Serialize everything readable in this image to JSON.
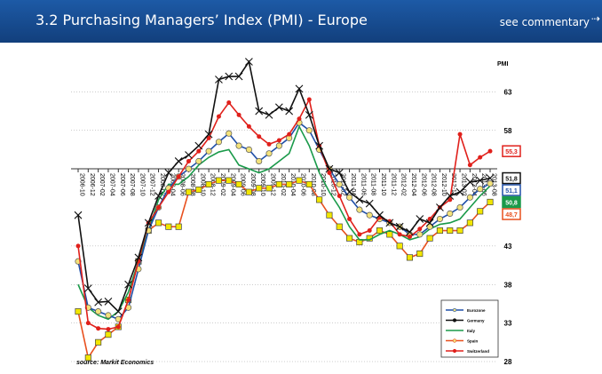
{
  "header": {
    "title": "3.2 Purchasing Managers’ Index (PMI) - Europe",
    "link": "see commentary"
  },
  "chart_data": {
    "type": "line",
    "y_label": "PMI",
    "source": "source:  Markit Economics",
    "categories": [
      "2006-10",
      "2006-12",
      "2007-02",
      "2007-04",
      "2007-06",
      "2007-08",
      "2007-10",
      "2007-12",
      "2008-02",
      "2008-04",
      "2008-06",
      "2008-08",
      "2008-10",
      "2008-12",
      "2009-02",
      "2009-04",
      "2009-06",
      "2009-08",
      "2009-10",
      "2009-12",
      "2010-02",
      "2010-04",
      "2010-06",
      "2010-08",
      "2010-10",
      "2010-12",
      "2011-02",
      "2011-04",
      "2011-06",
      "2011-08",
      "2011-10",
      "2011-12",
      "2012-02",
      "2012-04",
      "2012-06",
      "2012-08",
      "2012-10",
      "2012-12",
      "2013-02",
      "2013-04",
      "2013-06",
      "2013-08"
    ],
    "ylim": [
      28,
      68
    ],
    "yticks": [
      28,
      33,
      38,
      43,
      58,
      63
    ],
    "grid": true,
    "series": [
      {
        "name": "Eurozone",
        "color": "#1f4fa8",
        "marker": "circle",
        "end_label": "51,1",
        "values": [
          41,
          35,
          34.5,
          34,
          33.5,
          35,
          40,
          45,
          48,
          50.5,
          52,
          53,
          54,
          55.3,
          56.5,
          57.6,
          56,
          55.5,
          54,
          55,
          56,
          57,
          59,
          58,
          55.5,
          53,
          51,
          49.3,
          47.7,
          47,
          46.5,
          46,
          45.5,
          44.5,
          44.5,
          45.5,
          46.5,
          47.2,
          48,
          49.3,
          50.4,
          51.1
        ]
      },
      {
        "name": "Germany",
        "color": "#111111",
        "marker": "x",
        "end_label": "51,8",
        "values": [
          47,
          37.5,
          35.7,
          35.8,
          34.5,
          38,
          41.5,
          46,
          49.5,
          52.5,
          54,
          54.8,
          56,
          57.5,
          64.6,
          65,
          65,
          66.9,
          60.5,
          60,
          61,
          60.5,
          63.4,
          60,
          56,
          53,
          52.5,
          50,
          49,
          48.5,
          47,
          46,
          45.5,
          44.8,
          46.5,
          46,
          48,
          49.5,
          50,
          51.3,
          51.5,
          51.8
        ]
      },
      {
        "name": "Italy",
        "color": "#1a9a4a",
        "marker": "none",
        "end_label": "50,8",
        "values": [
          38,
          35,
          34,
          33.5,
          34.5,
          37,
          41,
          45,
          49,
          51,
          51,
          52,
          53.5,
          54.5,
          55.2,
          55.5,
          53.5,
          53,
          52.5,
          53,
          54,
          55,
          58.5,
          56,
          52.5,
          50,
          48,
          45.5,
          43.8,
          43.8,
          44.5,
          45,
          44.5,
          43.8,
          44.2,
          45.2,
          45.8,
          46,
          46.5,
          48,
          49.5,
          50.8
        ]
      },
      {
        "name": "Spain",
        "color": "#e8501e",
        "marker": "square",
        "end_label": "48,7",
        "values": [
          34.5,
          28.5,
          30.5,
          31.5,
          32.5,
          36,
          41,
          45,
          46,
          45.5,
          45.5,
          50,
          50.3,
          51,
          51.5,
          51.5,
          51,
          50,
          50.5,
          50.5,
          51,
          51,
          51.5,
          51,
          49,
          47,
          45.5,
          44,
          43.5,
          44,
          45,
          44.5,
          43,
          41.5,
          42,
          44,
          45,
          45,
          45,
          46,
          47.5,
          48.7
        ]
      },
      {
        "name": "Switzerland",
        "color": "#e0201b",
        "marker": "dot",
        "end_label": "55,3",
        "values": [
          43,
          33,
          32.3,
          32.2,
          32.5,
          36,
          41,
          46,
          48,
          50,
          52,
          54,
          55.3,
          57,
          59.8,
          61.6,
          60,
          58.5,
          57.2,
          56.2,
          56.7,
          57.5,
          59.5,
          62,
          56,
          52.5,
          49.5,
          46.5,
          44.5,
          45,
          46.7,
          46.2,
          44.5,
          44.2,
          45.2,
          46.5,
          48,
          49,
          57.5,
          53.5,
          54.5,
          55.3
        ]
      }
    ]
  }
}
